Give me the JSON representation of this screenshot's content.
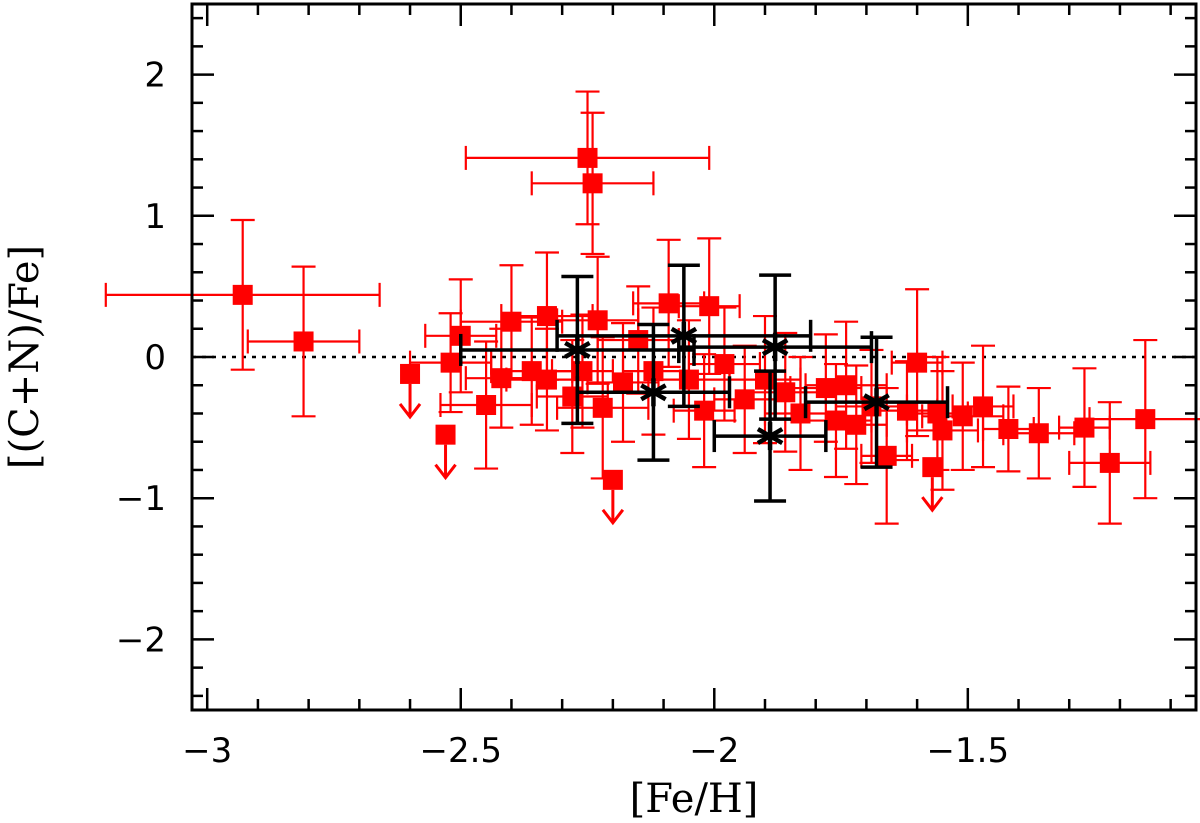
{
  "chart_data": {
    "type": "scatter",
    "title": "",
    "xlabel": "[Fe/H]",
    "ylabel": "[(C+N)/Fe]",
    "xlim": [
      -3.03,
      -1.05
    ],
    "ylim": [
      -2.5,
      2.5
    ],
    "x_ticks": [
      -3,
      -2.5,
      -2,
      -1.5
    ],
    "x_tick_labels": [
      "−3",
      "−2.5",
      "−2",
      "−1.5"
    ],
    "y_ticks": [
      -2,
      -1,
      0,
      1,
      2
    ],
    "y_tick_labels": [
      "−2",
      "−1",
      "0",
      "1",
      "2"
    ],
    "reference_line": {
      "y": 0,
      "style": "dotted"
    },
    "series": [
      {
        "name": "red squares",
        "marker": "square",
        "color": "#ff0000",
        "points": [
          {
            "x": -2.93,
            "y": 0.44,
            "xerr": 0.27,
            "yerr": 0.53
          },
          {
            "x": -2.81,
            "y": 0.11,
            "xerr": 0.11,
            "yerr": 0.53
          },
          {
            "x": -2.25,
            "y": 1.41,
            "xerr": 0.24,
            "yerr": 0.47
          },
          {
            "x": -2.24,
            "y": 1.23,
            "xerr": 0.12,
            "yerr": 0.5
          },
          {
            "x": -2.6,
            "y": -0.12,
            "xerr": 0.0,
            "yerr": 0.0,
            "upper_limit": true
          },
          {
            "x": -2.53,
            "y": -0.55,
            "xerr": 0.0,
            "yerr": 0.0,
            "upper_limit": true
          },
          {
            "x": -2.2,
            "y": -0.87,
            "xerr": 0.0,
            "yerr": 0.0,
            "upper_limit": true
          },
          {
            "x": -1.57,
            "y": -0.78,
            "xerr": 0.0,
            "yerr": 0.0,
            "upper_limit": true
          },
          {
            "x": -2.52,
            "y": -0.04,
            "xerr": 0.08,
            "yerr": 0.35
          },
          {
            "x": -2.5,
            "y": 0.15,
            "xerr": 0.07,
            "yerr": 0.4
          },
          {
            "x": -2.45,
            "y": -0.34,
            "xerr": 0.09,
            "yerr": 0.45
          },
          {
            "x": -2.42,
            "y": -0.15,
            "xerr": 0.07,
            "yerr": 0.35
          },
          {
            "x": -2.4,
            "y": 0.25,
            "xerr": 0.1,
            "yerr": 0.4
          },
          {
            "x": -2.36,
            "y": -0.1,
            "xerr": 0.08,
            "yerr": 0.38
          },
          {
            "x": -2.33,
            "y": 0.29,
            "xerr": 0.09,
            "yerr": 0.45
          },
          {
            "x": -2.33,
            "y": -0.16,
            "xerr": 0.08,
            "yerr": 0.36
          },
          {
            "x": -2.28,
            "y": -0.28,
            "xerr": 0.07,
            "yerr": 0.4
          },
          {
            "x": -2.26,
            "y": -0.1,
            "xerr": 0.06,
            "yerr": 0.4
          },
          {
            "x": -2.23,
            "y": 0.26,
            "xerr": 0.08,
            "yerr": 0.45
          },
          {
            "x": -2.22,
            "y": -0.36,
            "xerr": 0.09,
            "yerr": 0.5
          },
          {
            "x": -2.18,
            "y": -0.18,
            "xerr": 0.07,
            "yerr": 0.42
          },
          {
            "x": -2.15,
            "y": 0.12,
            "xerr": 0.08,
            "yerr": 0.38
          },
          {
            "x": -2.12,
            "y": -0.1,
            "xerr": 0.06,
            "yerr": 0.45
          },
          {
            "x": -2.09,
            "y": 0.38,
            "xerr": 0.07,
            "yerr": 0.45
          },
          {
            "x": -2.05,
            "y": -0.16,
            "xerr": 0.08,
            "yerr": 0.42
          },
          {
            "x": -2.02,
            "y": -0.38,
            "xerr": 0.06,
            "yerr": 0.4
          },
          {
            "x": -2.01,
            "y": 0.36,
            "xerr": 0.06,
            "yerr": 0.48
          },
          {
            "x": -1.98,
            "y": -0.05,
            "xerr": 0.07,
            "yerr": 0.4
          },
          {
            "x": -1.94,
            "y": -0.3,
            "xerr": 0.06,
            "yerr": 0.38
          },
          {
            "x": -1.9,
            "y": -0.16,
            "xerr": 0.07,
            "yerr": 0.45
          },
          {
            "x": -1.86,
            "y": -0.25,
            "xerr": 0.08,
            "yerr": 0.42
          },
          {
            "x": -1.83,
            "y": -0.4,
            "xerr": 0.07,
            "yerr": 0.4
          },
          {
            "x": -1.78,
            "y": -0.22,
            "xerr": 0.07,
            "yerr": 0.38
          },
          {
            "x": -1.76,
            "y": -0.45,
            "xerr": 0.07,
            "yerr": 0.4
          },
          {
            "x": -1.74,
            "y": -0.2,
            "xerr": 0.08,
            "yerr": 0.45
          },
          {
            "x": -1.72,
            "y": -0.48,
            "xerr": 0.06,
            "yerr": 0.42
          },
          {
            "x": -1.69,
            "y": -0.35,
            "xerr": 0.07,
            "yerr": 0.4
          },
          {
            "x": -1.66,
            "y": -0.7,
            "xerr": 0.05,
            "yerr": 0.48
          },
          {
            "x": -1.62,
            "y": -0.38,
            "xerr": 0.06,
            "yerr": 0.35
          },
          {
            "x": -1.6,
            "y": -0.04,
            "xerr": 0.05,
            "yerr": 0.52
          },
          {
            "x": -1.56,
            "y": -0.4,
            "xerr": 0.06,
            "yerr": 0.4
          },
          {
            "x": -1.55,
            "y": -0.52,
            "xerr": 0.07,
            "yerr": 0.42
          },
          {
            "x": -1.51,
            "y": -0.42,
            "xerr": 0.08,
            "yerr": 0.38
          },
          {
            "x": -1.47,
            "y": -0.35,
            "xerr": 0.06,
            "yerr": 0.43
          },
          {
            "x": -1.42,
            "y": -0.51,
            "xerr": 0.05,
            "yerr": 0.3
          },
          {
            "x": -1.36,
            "y": -0.54,
            "xerr": 0.07,
            "yerr": 0.32
          },
          {
            "x": -1.27,
            "y": -0.5,
            "xerr": 0.05,
            "yerr": 0.42
          },
          {
            "x": -1.22,
            "y": -0.75,
            "xerr": 0.08,
            "yerr": 0.43
          },
          {
            "x": -1.15,
            "y": -0.44,
            "xerr": 0.11,
            "yerr": 0.56
          }
        ]
      },
      {
        "name": "black asterisks",
        "marker": "asterisk",
        "color": "#000000",
        "points": [
          {
            "x": -2.27,
            "y": 0.05,
            "xerr": 0.23,
            "yerr": 0.52
          },
          {
            "x": -2.12,
            "y": -0.25,
            "xerr": 0.15,
            "yerr": 0.48
          },
          {
            "x": -2.06,
            "y": 0.15,
            "xerr": 0.25,
            "yerr": 0.5
          },
          {
            "x": -1.89,
            "y": -0.56,
            "xerr": 0.11,
            "yerr": 0.46
          },
          {
            "x": -1.88,
            "y": 0.07,
            "xerr": 0.19,
            "yerr": 0.51
          },
          {
            "x": -1.68,
            "y": -0.32,
            "xerr": 0.14,
            "yerr": 0.46
          }
        ]
      }
    ]
  }
}
